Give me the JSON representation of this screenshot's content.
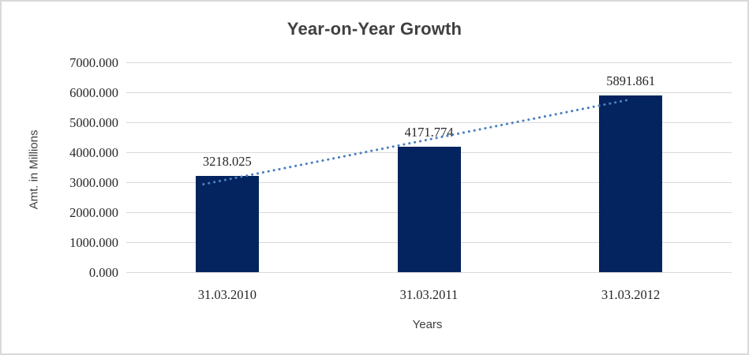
{
  "chart_data": {
    "type": "bar",
    "title": "Year-on-Year Growth",
    "xlabel": "Years",
    "ylabel": "Amt. in Millions",
    "categories": [
      "31.03.2010",
      "31.03.2011",
      "31.03.2012"
    ],
    "values": [
      3218.025,
      4171.774,
      5891.861
    ],
    "data_labels": [
      "3218.025",
      "4171.774",
      "5891.861"
    ],
    "y_ticks": [
      "0.000",
      "1000.000",
      "2000.000",
      "3000.000",
      "4000.000",
      "5000.000",
      "6000.000",
      "7000.000"
    ],
    "ylim": [
      0,
      7000
    ],
    "grid": true,
    "legend": false,
    "bar_color": "#04245f",
    "gridline_color": "#d9d9d9",
    "title_color": "#404040",
    "tick_label_color": "#262626",
    "trendline": {
      "type": "linear",
      "style": "dotted",
      "color": "#4c80be"
    }
  }
}
